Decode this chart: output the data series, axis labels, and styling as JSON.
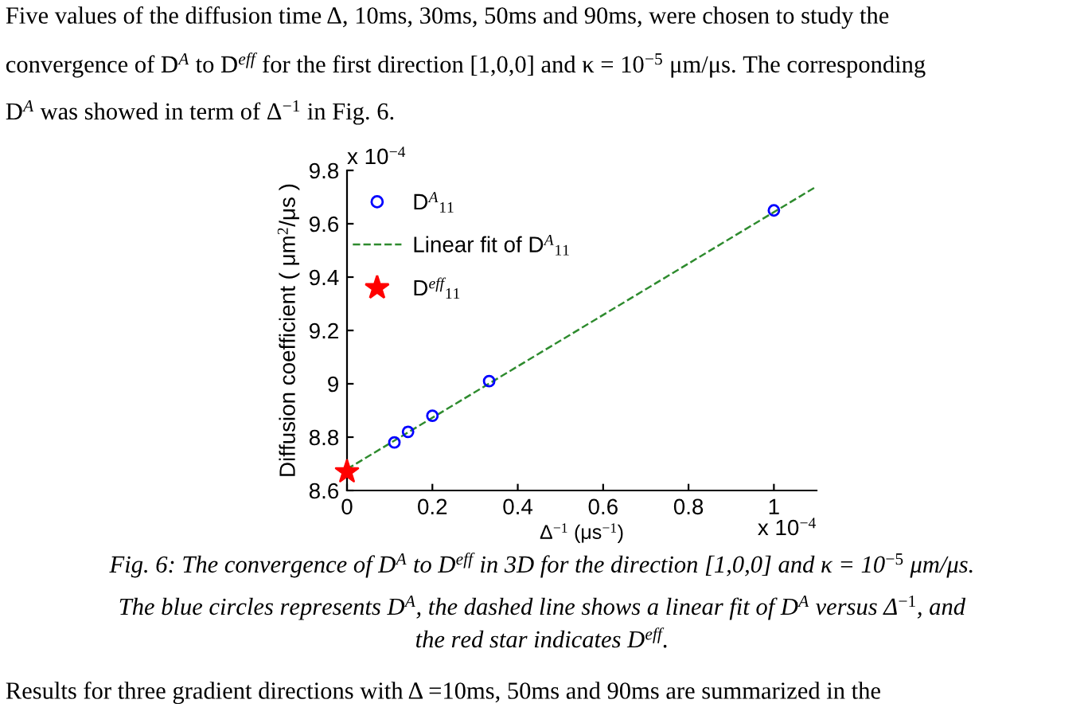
{
  "chart_data": {
    "type": "scatter",
    "xlabel": "Δ$^{−1}$ (μs$^{−1}$)",
    "ylabel": "Diffusion coefficient ( μm$^{2}$/μs )",
    "xlim": [
      0,
      1.1
    ],
    "xticks": [
      0,
      0.2,
      0.4,
      0.6,
      0.8,
      1
    ],
    "ylim": [
      8.6,
      9.8
    ],
    "yticks": [
      8.6,
      8.8,
      9,
      9.2,
      9.4,
      9.6,
      9.8
    ],
    "grid": false,
    "legend": "top left",
    "series": [
      {
        "name": "D$^{A}$$_{11}$",
        "marker": "circle",
        "color": "#0000ff",
        "x": [
          0.111,
          0.143,
          0.2,
          0.333,
          1.0
        ],
        "values": [
          8.78,
          8.82,
          8.88,
          9.01,
          9.65
        ]
      },
      {
        "name": "Linear fit of D$^{A}$$_{11}$",
        "type": "line",
        "marker": "none",
        "line_style": "dashed",
        "color": "#2e8b2e",
        "x": [
          0,
          1.1
        ],
        "values": [
          8.68,
          9.74
        ]
      },
      {
        "name": "D$^{eff}$$_{11}$",
        "marker": "star",
        "color": "#ff0000",
        "x": [
          0
        ],
        "values": [
          8.67
        ]
      }
    ],
    "annotations": [
      "x 10$^{−4}$",
      "x 10$^{−4}$",
      "Five values of the diffusion time Δ, 10ms, 30ms, 50ms and 90ms, were chosen to study the",
      "convergence of D$^{A}$ to D$^{eff}$ for the first direction [1,0,0] and κ = 10$^{−5}$ μm/μs. The corresponding",
      "D$^{A}$ was showed in term of Δ$^{−1}$ in Fig. 6.",
      "Fig. 6: The convergence of D$^{A}$ to D$^{eff}$ in 3D for the direction [1,0,0] and κ = 10$^{−5}$ μm/μs.",
      "The blue circles represents D$^{A}$, the dashed line shows a linear fit of D$^{A}$ versus Δ$^{−1}$, and",
      "the red star indicates D$^{eff}$.",
      "Results for three gradient directions with Δ =10ms, 50ms and 90ms are summarized in the"
    ]
  }
}
